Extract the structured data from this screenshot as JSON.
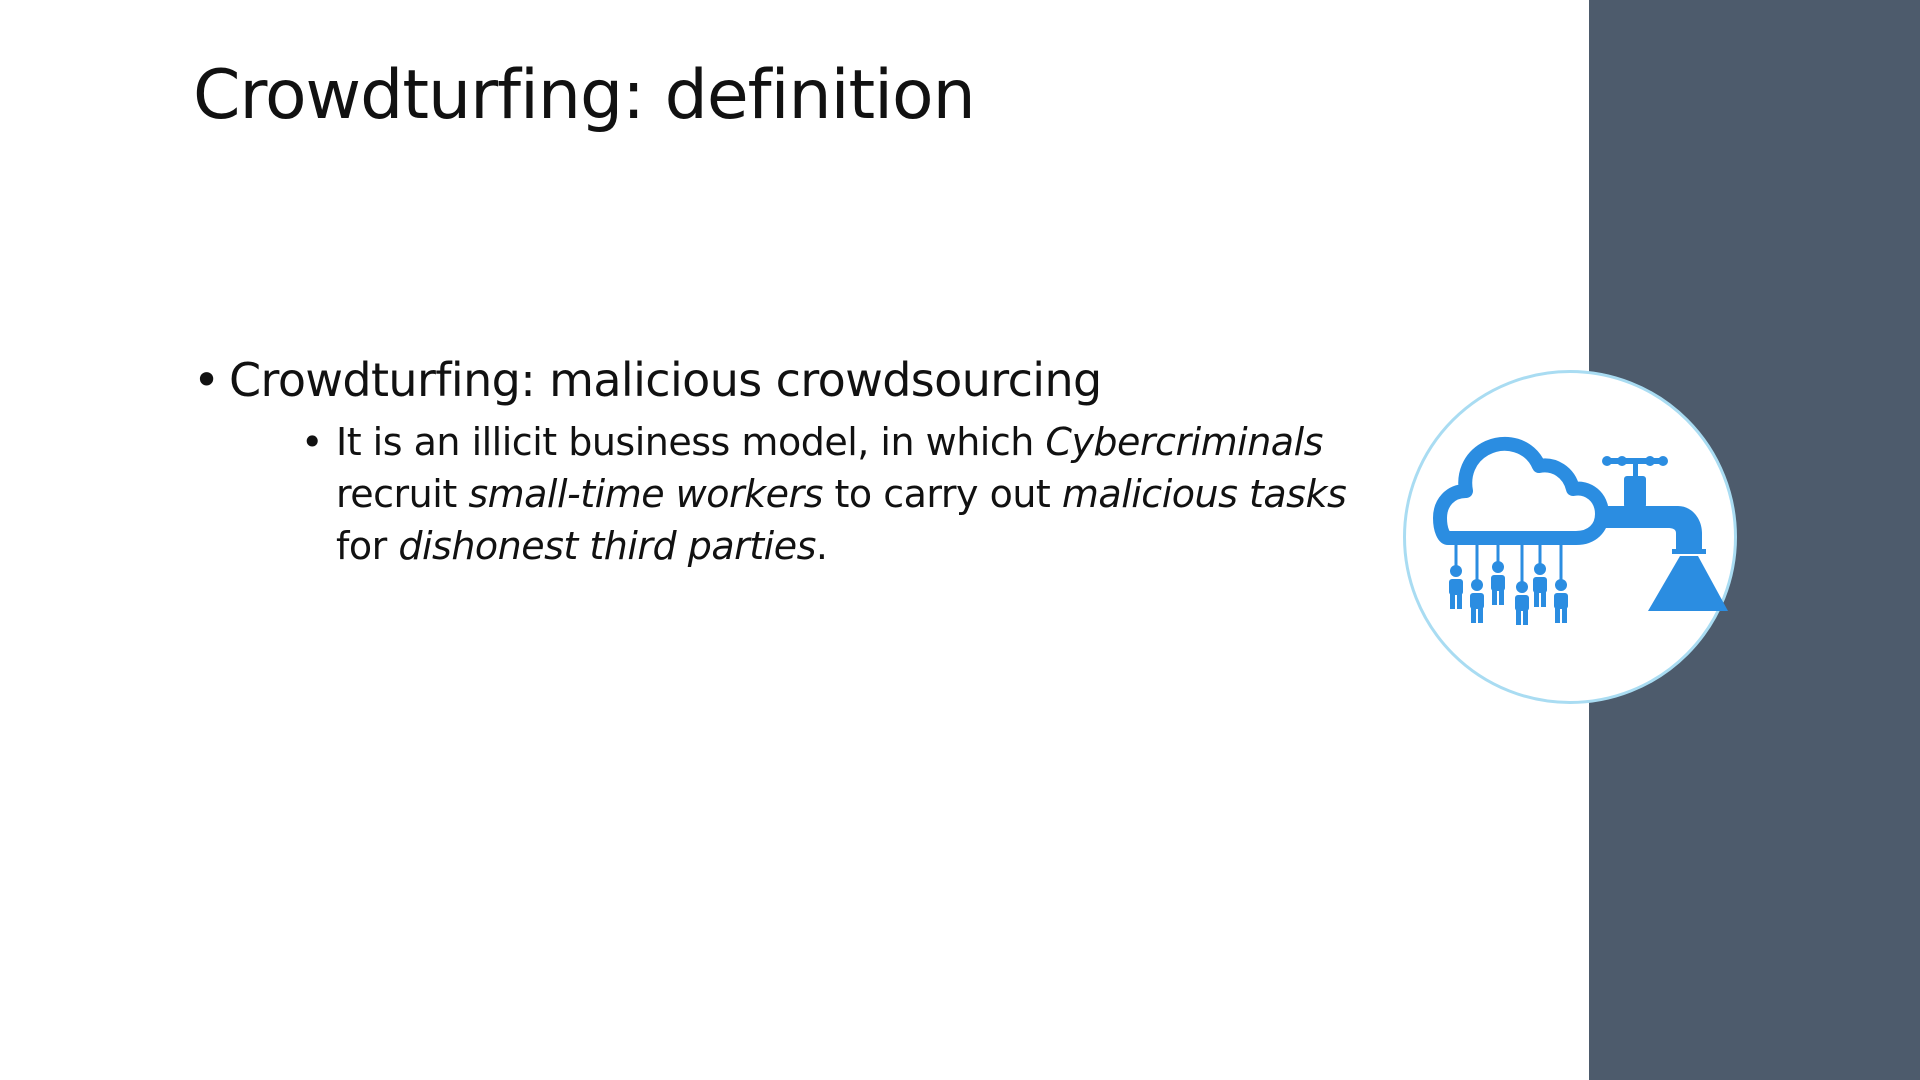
{
  "slide": {
    "title": "Crowdturfing: definition",
    "bullet_1": {
      "term": "Crowdturfing",
      "rest": ": malicious crowdsourcing"
    },
    "bullet_2": {
      "line1_plain": "It is an illicit business model, in which ",
      "line1_italic": "Cybercriminals",
      "line2_plain_a": "recruit ",
      "line2_italic_a": "small-time workers",
      "line2_plain_b": " to carry out ",
      "line2_italic_b": "malicious tasks",
      "line3_plain_a": "for ",
      "line3_italic_a": "dishonest third parties",
      "line3_plain_b": "."
    },
    "bullet_glyph": "•",
    "icon": "cloud-faucet-crowd-icon"
  },
  "colors": {
    "side_panel": "#4d5b6c",
    "icon_blue": "#2b8de1",
    "circle_border": "#a9dcf2",
    "text": "#111111"
  }
}
